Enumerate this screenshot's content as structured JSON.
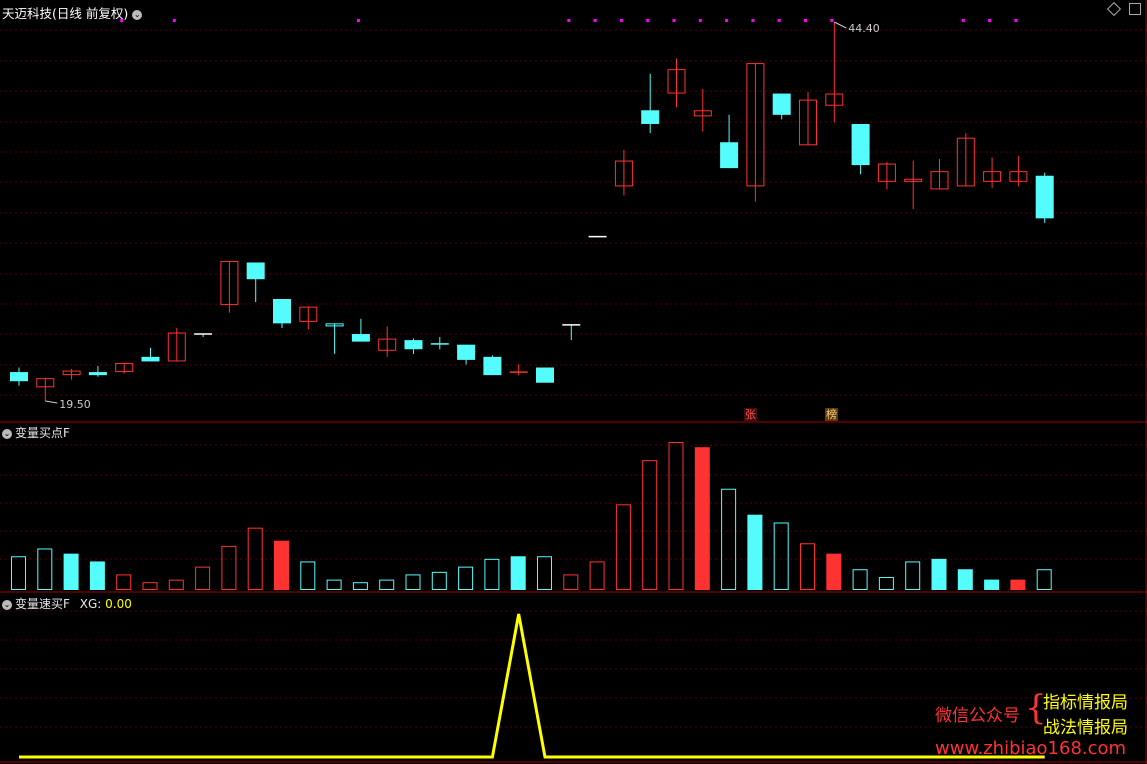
{
  "header": {
    "stock_name": "天迈科技",
    "period_label": "(日线 前复权)",
    "dropdown_glyph": "⌄"
  },
  "main_chart": {
    "high_label": "44.40",
    "low_label": "19.50",
    "tag_zhang": "张",
    "tag_bang": "榜"
  },
  "indicator1": {
    "title": "变量买点F"
  },
  "indicator2": {
    "title": "变量速买F",
    "xg_label": "XG:",
    "xg_value": "0.00"
  },
  "watermark": {
    "left": "微信公众号",
    "brace": "{",
    "line1": "指标情报局",
    "line2": "战法情报局",
    "url": "www.zhibiao168.com"
  },
  "colors": {
    "up": "#ff3232",
    "down": "#54fcfc",
    "line": "#ffff00",
    "grid": "#5a0000",
    "magenta": "#ff00ff"
  },
  "chart_data": [
    {
      "type": "candlestick",
      "title": "天迈科技(日线 前复权)",
      "price_high": 44.4,
      "price_low": 19.5,
      "candles": [
        {
          "o": 21.4,
          "h": 21.7,
          "l": 20.5,
          "c": 20.8,
          "dir": "down",
          "fill": true
        },
        {
          "o": 20.4,
          "h": 21.0,
          "l": 19.5,
          "c": 21.0,
          "dir": "up",
          "fill": false
        },
        {
          "o": 21.2,
          "h": 21.6,
          "l": 20.9,
          "c": 21.5,
          "dir": "up",
          "fill": false
        },
        {
          "o": 21.4,
          "h": 21.8,
          "l": 21.1,
          "c": 21.2,
          "dir": "down",
          "fill": true
        },
        {
          "o": 21.4,
          "h": 22.0,
          "l": 21.3,
          "c": 22.0,
          "dir": "up",
          "fill": false
        },
        {
          "o": 22.4,
          "h": 23.0,
          "l": 22.2,
          "c": 22.1,
          "dir": "down",
          "fill": true
        },
        {
          "o": 22.1,
          "h": 24.3,
          "l": 22.1,
          "c": 24.0,
          "dir": "up",
          "fill": false
        },
        {
          "o": 23.9,
          "h": 23.9,
          "l": 23.7,
          "c": 23.9,
          "dir": "down",
          "fill": false
        },
        {
          "o": 25.8,
          "h": 28.7,
          "l": 25.3,
          "c": 28.7,
          "dir": "up",
          "fill": false
        },
        {
          "o": 28.6,
          "h": 28.6,
          "l": 26.0,
          "c": 27.5,
          "dir": "down",
          "fill": true
        },
        {
          "o": 26.2,
          "h": 26.2,
          "l": 24.3,
          "c": 24.6,
          "dir": "down",
          "fill": true
        },
        {
          "o": 24.7,
          "h": 25.7,
          "l": 24.2,
          "c": 25.7,
          "dir": "up",
          "fill": false
        },
        {
          "o": 24.6,
          "h": 24.6,
          "l": 22.6,
          "c": 24.4,
          "dir": "down",
          "fill": false
        },
        {
          "o": 23.9,
          "h": 24.9,
          "l": 23.6,
          "c": 23.4,
          "dir": "down",
          "fill": true
        },
        {
          "o": 22.8,
          "h": 24.4,
          "l": 22.4,
          "c": 23.6,
          "dir": "up",
          "fill": false
        },
        {
          "o": 23.5,
          "h": 23.6,
          "l": 22.6,
          "c": 22.9,
          "dir": "down",
          "fill": true
        },
        {
          "o": 23.2,
          "h": 23.7,
          "l": 22.9,
          "c": 23.3,
          "dir": "down",
          "fill": true
        },
        {
          "o": 23.2,
          "h": 23.2,
          "l": 21.9,
          "c": 22.2,
          "dir": "down",
          "fill": true
        },
        {
          "o": 22.4,
          "h": 22.5,
          "l": 21.2,
          "c": 21.2,
          "dir": "down",
          "fill": true
        },
        {
          "o": 21.4,
          "h": 21.9,
          "l": 21.2,
          "c": 21.4,
          "dir": "up",
          "fill": false
        },
        {
          "o": 21.7,
          "h": 21.7,
          "l": 20.8,
          "c": 20.7,
          "dir": "down",
          "fill": true
        },
        {
          "o": 24.5,
          "h": 24.5,
          "l": 23.5,
          "c": 24.5,
          "dir": "down",
          "fill": false
        },
        {
          "o": 30.3,
          "h": 30.3,
          "l": 30.3,
          "c": 30.3,
          "dir": "down",
          "fill": false
        },
        {
          "o": 33.6,
          "h": 36.0,
          "l": 33.0,
          "c": 35.3,
          "dir": "up",
          "fill": false
        },
        {
          "o": 38.6,
          "h": 41.0,
          "l": 37.1,
          "c": 37.7,
          "dir": "down",
          "fill": true
        },
        {
          "o": 39.7,
          "h": 42.0,
          "l": 38.8,
          "c": 41.3,
          "dir": "up",
          "fill": false
        },
        {
          "o": 38.6,
          "h": 40.0,
          "l": 37.2,
          "c": 38.2,
          "dir": "up",
          "fill": false
        },
        {
          "o": 36.5,
          "h": 38.3,
          "l": 34.8,
          "c": 34.8,
          "dir": "down",
          "fill": true
        },
        {
          "o": 33.6,
          "h": 41.7,
          "l": 32.6,
          "c": 41.7,
          "dir": "up",
          "fill": false
        },
        {
          "o": 39.7,
          "h": 39.7,
          "l": 38.0,
          "c": 38.3,
          "dir": "down",
          "fill": true
        },
        {
          "o": 36.3,
          "h": 39.8,
          "l": 36.3,
          "c": 39.3,
          "dir": "up",
          "fill": false
        },
        {
          "o": 38.9,
          "h": 44.4,
          "l": 37.8,
          "c": 39.7,
          "dir": "up",
          "fill": false
        },
        {
          "o": 37.7,
          "h": 37.7,
          "l": 34.4,
          "c": 35.0,
          "dir": "down",
          "fill": true
        },
        {
          "o": 33.9,
          "h": 35.2,
          "l": 33.4,
          "c": 35.1,
          "dir": "up",
          "fill": false
        },
        {
          "o": 33.9,
          "h": 35.3,
          "l": 32.1,
          "c": 34.1,
          "dir": "up",
          "fill": false
        },
        {
          "o": 33.4,
          "h": 35.4,
          "l": 33.4,
          "c": 34.6,
          "dir": "up",
          "fill": false
        },
        {
          "o": 33.6,
          "h": 37.1,
          "l": 33.6,
          "c": 36.8,
          "dir": "up",
          "fill": false
        },
        {
          "o": 33.9,
          "h": 35.5,
          "l": 33.5,
          "c": 34.6,
          "dir": "up",
          "fill": false
        },
        {
          "o": 33.9,
          "h": 35.6,
          "l": 33.6,
          "c": 34.6,
          "dir": "up",
          "fill": false
        },
        {
          "o": 34.3,
          "h": 34.5,
          "l": 31.2,
          "c": 31.5,
          "dir": "down",
          "fill": true
        }
      ]
    },
    {
      "type": "bar",
      "title": "变量买点F",
      "values": [
        1.3,
        1.6,
        1.4,
        1.1,
        0.6,
        0.3,
        0.4,
        0.9,
        1.7,
        2.4,
        1.9,
        1.1,
        0.4,
        0.3,
        0.4,
        0.6,
        0.7,
        0.9,
        1.2,
        1.3,
        1.3,
        0.6,
        1.1,
        3.3,
        5.0,
        5.7,
        5.5,
        3.9,
        2.9,
        2.6,
        1.8,
        1.4,
        0.8,
        0.5,
        1.1,
        1.2,
        0.8,
        0.4,
        0.4,
        0.8
      ],
      "styles": [
        "down-o",
        "down-o",
        "down-f",
        "down-f",
        "up-o",
        "up-o",
        "up-o",
        "up-o",
        "up-o",
        "up-o",
        "up-f",
        "down-o",
        "down-o",
        "down-o",
        "down-o",
        "down-o",
        "down-o",
        "down-o",
        "down-o",
        "down-f",
        "down-o",
        "up-o",
        "up-o",
        "up-o",
        "up-o",
        "up-o",
        "up-f",
        "down-o",
        "down-f",
        "down-o",
        "up-o",
        "up-f",
        "down-o",
        "down-o",
        "down-o",
        "down-f",
        "down-f",
        "down-f",
        "up-f",
        "down-o"
      ]
    },
    {
      "type": "line",
      "title": "变量速买F",
      "series": [
        {
          "name": "XG",
          "values": [
            0,
            0,
            0,
            0,
            0,
            0,
            0,
            0,
            0,
            0,
            0,
            0,
            0,
            0,
            0,
            0,
            0,
            0,
            0,
            1,
            0,
            0,
            0,
            0,
            0,
            0,
            0,
            0,
            0,
            0,
            0,
            0,
            0,
            0,
            0,
            0,
            0,
            0,
            0,
            0
          ]
        }
      ],
      "ylim": [
        0,
        1
      ]
    }
  ]
}
